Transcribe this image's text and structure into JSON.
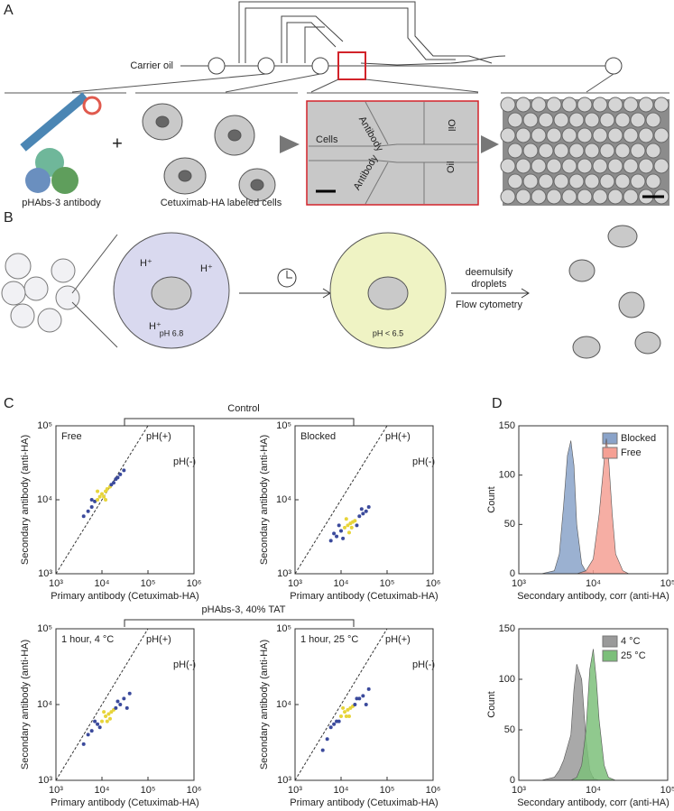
{
  "panels": {
    "A": {
      "letter": "A",
      "carrier_oil": "Carrier oil",
      "antibody_label": "pHAbs-3 antibody",
      "plus": "+",
      "cells_label": "Cetuximab-HA labeled cells",
      "micrograph": [
        "Cells",
        "Antibody",
        "Antibody",
        "Oil",
        "Oil"
      ]
    },
    "B": {
      "letter": "B",
      "protons": [
        "H⁺",
        "H⁺",
        "H⁺"
      ],
      "ph_before": "pH 6.8",
      "ph_after": "pH < 6.5",
      "step1": "deemulsify",
      "step2": "droplets",
      "step3": "Flow cytometry"
    },
    "C": {
      "letter": "C",
      "groups": [
        "Control",
        "pHAbs-3, 40% TAT"
      ]
    },
    "D": {
      "letter": "D"
    }
  },
  "chart_data": [
    {
      "type": "scatter",
      "xlabel": "Primary antibody (Cetuximab-HA)",
      "ylabel": "Secondary antibody (anti-HA)",
      "log": true,
      "diagonal": true,
      "color": "#3b4a9c",
      "core_color": "#e7d43a",
      "annotations": [
        "Free",
        "pH(+)",
        "pH(-)"
      ],
      "x": [
        4000,
        5000,
        6000,
        7000,
        8000,
        9000,
        10000,
        11000,
        12000,
        13000,
        15000,
        18000,
        20000,
        25000,
        30000,
        8000,
        12000,
        16000,
        6000,
        22000
      ],
      "values": [
        6000,
        7000,
        8000,
        9500,
        10000,
        11000,
        12000,
        11000,
        13000,
        14000,
        15000,
        17000,
        19000,
        22000,
        25000,
        13000,
        10000,
        16000,
        10000,
        20000
      ],
      "xlim": [
        1000,
        1000000
      ],
      "ylim": [
        1000,
        100000
      ],
      "xticks": [
        {
          "value": 1000,
          "label": "10³"
        },
        {
          "value": 10000,
          "label": "10⁴"
        },
        {
          "value": 100000,
          "label": "10⁵"
        },
        {
          "value": 1000000,
          "label": "10⁶"
        }
      ],
      "yticks": [
        {
          "value": 1000,
          "label": "10³"
        },
        {
          "value": 10000,
          "label": "10⁴"
        },
        {
          "value": 100000,
          "label": "10⁵"
        }
      ]
    },
    {
      "type": "scatter",
      "xlabel": "Primary antibody (Cetuximab-HA)",
      "ylabel": "Secondary antibody (anti-HA)",
      "log": true,
      "diagonal": true,
      "color": "#3b4a9c",
      "core_color": "#e7d43a",
      "annotations": [
        "Blocked",
        "pH(+)",
        "pH(-)"
      ],
      "x": [
        6000,
        8000,
        10000,
        12000,
        14000,
        16000,
        18000,
        20000,
        25000,
        30000,
        35000,
        9000,
        15000,
        22000,
        11000,
        7000,
        28000,
        13000,
        17000,
        40000
      ],
      "values": [
        2800,
        3200,
        3800,
        4200,
        4500,
        4800,
        5000,
        5200,
        6000,
        6500,
        7000,
        4500,
        3600,
        4500,
        3000,
        3500,
        7500,
        5500,
        4200,
        8000
      ],
      "xlim": [
        1000,
        1000000
      ],
      "ylim": [
        1000,
        100000
      ],
      "xticks": [
        {
          "value": 1000,
          "label": "10³"
        },
        {
          "value": 10000,
          "label": "10⁴"
        },
        {
          "value": 100000,
          "label": "10⁵"
        },
        {
          "value": 1000000,
          "label": "10⁶"
        }
      ],
      "yticks": [
        {
          "value": 1000,
          "label": "10³"
        },
        {
          "value": 10000,
          "label": "10⁴"
        },
        {
          "value": 100000,
          "label": "10⁵"
        }
      ]
    },
    {
      "type": "area",
      "xlabel": "Secondary antibody, corr (anti-HA)",
      "ylabel": "Count",
      "logx": true,
      "series": [
        {
          "name": "Blocked",
          "color": "#8aa3c9",
          "x": [
            2000,
            3000,
            3500,
            4000,
            4500,
            5000,
            5500,
            6000,
            7000,
            8000,
            10000
          ],
          "values": [
            0,
            3,
            20,
            70,
            120,
            135,
            110,
            50,
            10,
            2,
            0
          ]
        },
        {
          "name": "Free",
          "color": "#f5a094",
          "x": [
            6000,
            8000,
            10000,
            12000,
            14000,
            15000,
            16000,
            18000,
            20000,
            25000,
            30000
          ],
          "values": [
            0,
            3,
            15,
            60,
            115,
            137,
            120,
            60,
            20,
            3,
            0
          ]
        }
      ],
      "xlim": [
        1000,
        100000
      ],
      "ylim": [
        0,
        150
      ],
      "xticks": [
        {
          "value": 1000,
          "label": "10³"
        },
        {
          "value": 10000,
          "label": "10⁴"
        },
        {
          "value": 100000,
          "label": "10⁵"
        }
      ],
      "yticks": [
        0,
        50,
        100,
        150
      ]
    },
    {
      "type": "scatter",
      "xlabel": "Primary antibody (Cetuximab-HA)",
      "ylabel": "Secondary antibody (anti-HA)",
      "log": true,
      "diagonal": true,
      "color": "#3b4a9c",
      "core_color": "#e7d43a",
      "annotations": [
        "1 hour, 4 °C",
        "pH(+)",
        "pH(-)"
      ],
      "x": [
        5000,
        6000,
        8000,
        10000,
        12000,
        14000,
        16000,
        18000,
        20000,
        25000,
        30000,
        40000,
        9000,
        11000,
        15000,
        7000,
        13000,
        22000,
        35000,
        4000
      ],
      "values": [
        4000,
        4500,
        5500,
        6000,
        7000,
        7500,
        8000,
        8500,
        9000,
        10000,
        12000,
        14000,
        5000,
        8000,
        6500,
        6000,
        6000,
        11000,
        9000,
        3000
      ],
      "xlim": [
        1000,
        1000000
      ],
      "ylim": [
        1000,
        100000
      ],
      "xticks": [
        {
          "value": 1000,
          "label": "10³"
        },
        {
          "value": 10000,
          "label": "10⁴"
        },
        {
          "value": 100000,
          "label": "10⁵"
        },
        {
          "value": 1000000,
          "label": "10⁶"
        }
      ],
      "yticks": [
        {
          "value": 1000,
          "label": "10³"
        },
        {
          "value": 10000,
          "label": "10⁴"
        },
        {
          "value": 100000,
          "label": "10⁵"
        }
      ]
    },
    {
      "type": "scatter",
      "xlabel": "Primary antibody (Cetuximab-HA)",
      "ylabel": "Secondary antibody (anti-HA)",
      "log": true,
      "diagonal": true,
      "color": "#3b4a9c",
      "core_color": "#e7d43a",
      "annotations": [
        "1 hour, 25 °C",
        "pH(+)",
        "pH(-)"
      ],
      "x": [
        5000,
        6000,
        8000,
        10000,
        12000,
        14000,
        16000,
        18000,
        20000,
        25000,
        30000,
        40000,
        9000,
        11000,
        15000,
        7000,
        13000,
        22000,
        35000,
        4000
      ],
      "values": [
        3500,
        5000,
        6000,
        7000,
        8000,
        8500,
        9000,
        9500,
        10000,
        12000,
        13000,
        16000,
        6000,
        9000,
        7000,
        5500,
        7000,
        12000,
        10000,
        2500
      ],
      "xlim": [
        1000,
        1000000
      ],
      "ylim": [
        1000,
        100000
      ],
      "xticks": [
        {
          "value": 1000,
          "label": "10³"
        },
        {
          "value": 10000,
          "label": "10⁴"
        },
        {
          "value": 100000,
          "label": "10⁵"
        },
        {
          "value": 1000000,
          "label": "10⁶"
        }
      ],
      "yticks": [
        {
          "value": 1000,
          "label": "10³"
        },
        {
          "value": 10000,
          "label": "10⁴"
        },
        {
          "value": 100000,
          "label": "10⁵"
        }
      ]
    },
    {
      "type": "area",
      "xlabel": "Secondary antibody, corr (anti-HA)",
      "ylabel": "Count",
      "logx": true,
      "series": [
        {
          "name": "4 °C",
          "color": "#9a9a9a",
          "x": [
            2000,
            3000,
            3500,
            4000,
            5000,
            5500,
            6000,
            7000,
            8000,
            9000,
            10000,
            12000
          ],
          "values": [
            0,
            3,
            10,
            20,
            45,
            90,
            115,
            100,
            40,
            10,
            2,
            0
          ]
        },
        {
          "name": "25 °C",
          "color": "#7cbf7a",
          "x": [
            5000,
            6000,
            7000,
            8000,
            9000,
            10000,
            11000,
            12000,
            14000,
            16000,
            20000
          ],
          "values": [
            0,
            3,
            15,
            50,
            110,
            130,
            100,
            60,
            15,
            3,
            0
          ]
        }
      ],
      "xlim": [
        1000,
        100000
      ],
      "ylim": [
        0,
        150
      ],
      "xticks": [
        {
          "value": 1000,
          "label": "10³"
        },
        {
          "value": 10000,
          "label": "10⁴"
        },
        {
          "value": 100000,
          "label": "10⁵"
        }
      ],
      "yticks": [
        0,
        50,
        100,
        150
      ]
    }
  ]
}
